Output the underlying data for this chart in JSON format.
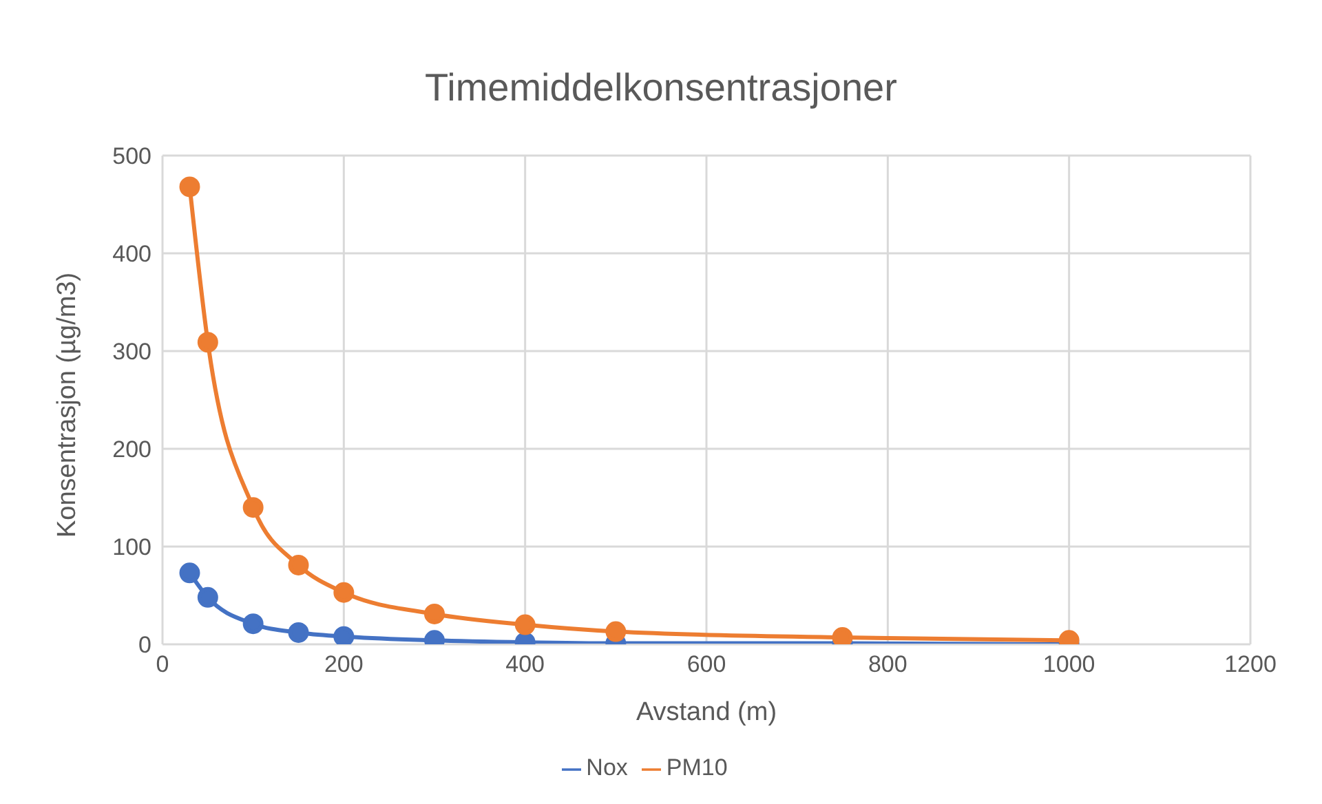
{
  "chart_data": {
    "type": "line",
    "title": "Timemiddelkonsentrasjoner",
    "xlabel": "Avstand (m)",
    "ylabel": "Konsentrasjon (µg/m3)",
    "x": [
      30,
      50,
      100,
      150,
      200,
      300,
      400,
      500,
      750,
      1000
    ],
    "series": [
      {
        "name": "Nox",
        "color": "#4472c4",
        "values": [
          73,
          48,
          21,
          12,
          8,
          4,
          2,
          1,
          1,
          0
        ]
      },
      {
        "name": "PM10",
        "color": "#ed7d31",
        "values": [
          468,
          309,
          140,
          81,
          53,
          31,
          20,
          13,
          7,
          4
        ]
      }
    ],
    "xlim": [
      0,
      1200
    ],
    "xticks": [
      0,
      200,
      400,
      600,
      800,
      1000,
      1200
    ],
    "ylim": [
      0,
      500
    ],
    "yticks": [
      0,
      100,
      200,
      300,
      400,
      500
    ],
    "grid": true,
    "legend": "bottom",
    "marker": "circle",
    "line_style": "solid"
  }
}
